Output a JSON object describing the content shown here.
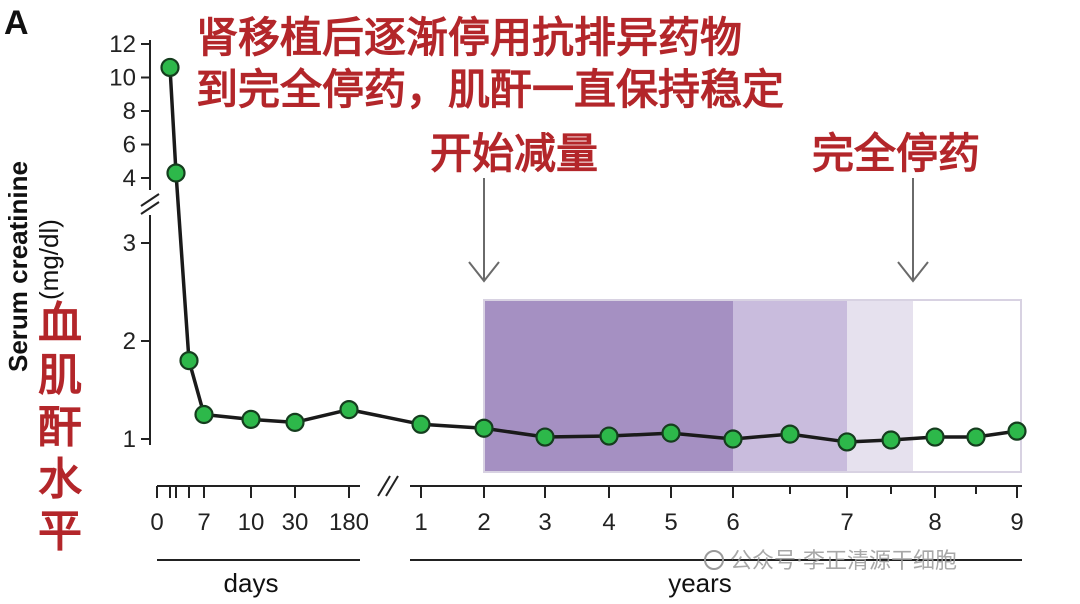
{
  "panel_letter": "A",
  "watermark": "公众号·李正清源干细胞",
  "annotations": {
    "headline_line1": "肾移植后逐渐停用抗排异药物",
    "headline_line2": "到完全停药，肌酐一直保持稳定",
    "start_taper": "开始减量",
    "full_stop": "完全停药",
    "vertical_label": [
      "血",
      "肌",
      "酐",
      "水",
      "平"
    ]
  },
  "colors": {
    "line": "#1a1a1a",
    "marker_fill": "#2db84a",
    "marker_edge": "#153d1e",
    "band_dark": "#a590c2",
    "band_mid": "#c9bcdd",
    "band_light": "#e6e1ee",
    "band_white": "#ffffff",
    "annotation_red": "#b3262a",
    "arrow": "#6a6a6a"
  },
  "chart_data": {
    "type": "line",
    "title": "",
    "ylabel": "Serum creatinine",
    "ylabel_unit": "(mg/dl)",
    "y_scale": "broken axis: 1–3 linear, 4–12 compressed above break",
    "y_ticks_lower": [
      1,
      2,
      3
    ],
    "y_ticks_upper": [
      4,
      6,
      8,
      10,
      12
    ],
    "x_segments": [
      {
        "label": "days",
        "tick_labels": [
          "0",
          "7",
          "10",
          "30",
          "180"
        ]
      },
      {
        "label": "years",
        "tick_labels": [
          "1",
          "2",
          "3",
          "4",
          "5",
          "6",
          "7",
          "8",
          "9"
        ]
      }
    ],
    "series": [
      {
        "points": [
          {
            "x": "day 1",
            "y": 10.6
          },
          {
            "x": "day 2",
            "y": 4.3
          },
          {
            "x": "day 4",
            "y": 1.8
          },
          {
            "x": "day 7",
            "y": 1.25
          },
          {
            "x": "day 10",
            "y": 1.2
          },
          {
            "x": "day 30",
            "y": 1.17
          },
          {
            "x": "day 180",
            "y": 1.3
          },
          {
            "x": "year 1",
            "y": 1.15
          },
          {
            "x": "year 2",
            "y": 1.11
          },
          {
            "x": "year 3",
            "y": 1.02
          },
          {
            "x": "year 4",
            "y": 1.03
          },
          {
            "x": "year 5",
            "y": 1.06
          },
          {
            "x": "year 6",
            "y": 1.0
          },
          {
            "x": "year 6.5",
            "y": 1.05
          },
          {
            "x": "year 7",
            "y": 0.97
          },
          {
            "x": "year 7.5",
            "y": 0.99
          },
          {
            "x": "year 8",
            "y": 1.02
          },
          {
            "x": "year 8.5",
            "y": 1.02
          },
          {
            "x": "year 9",
            "y": 1.08
          }
        ]
      }
    ],
    "shaded_periods": [
      {
        "from_year": 2,
        "to_year": 6,
        "shade": "dark"
      },
      {
        "from_year": 6,
        "to_year": 7,
        "shade": "medium"
      },
      {
        "from_year": 7,
        "to_year": 7.75,
        "shade": "light"
      },
      {
        "from_year": 7.75,
        "to_year": 9,
        "shade": "white"
      }
    ],
    "arrows": [
      {
        "at_year": 2,
        "label_key": "start_taper"
      },
      {
        "at_year": 7.75,
        "label_key": "full_stop"
      }
    ],
    "grid": false,
    "legend": "none"
  }
}
